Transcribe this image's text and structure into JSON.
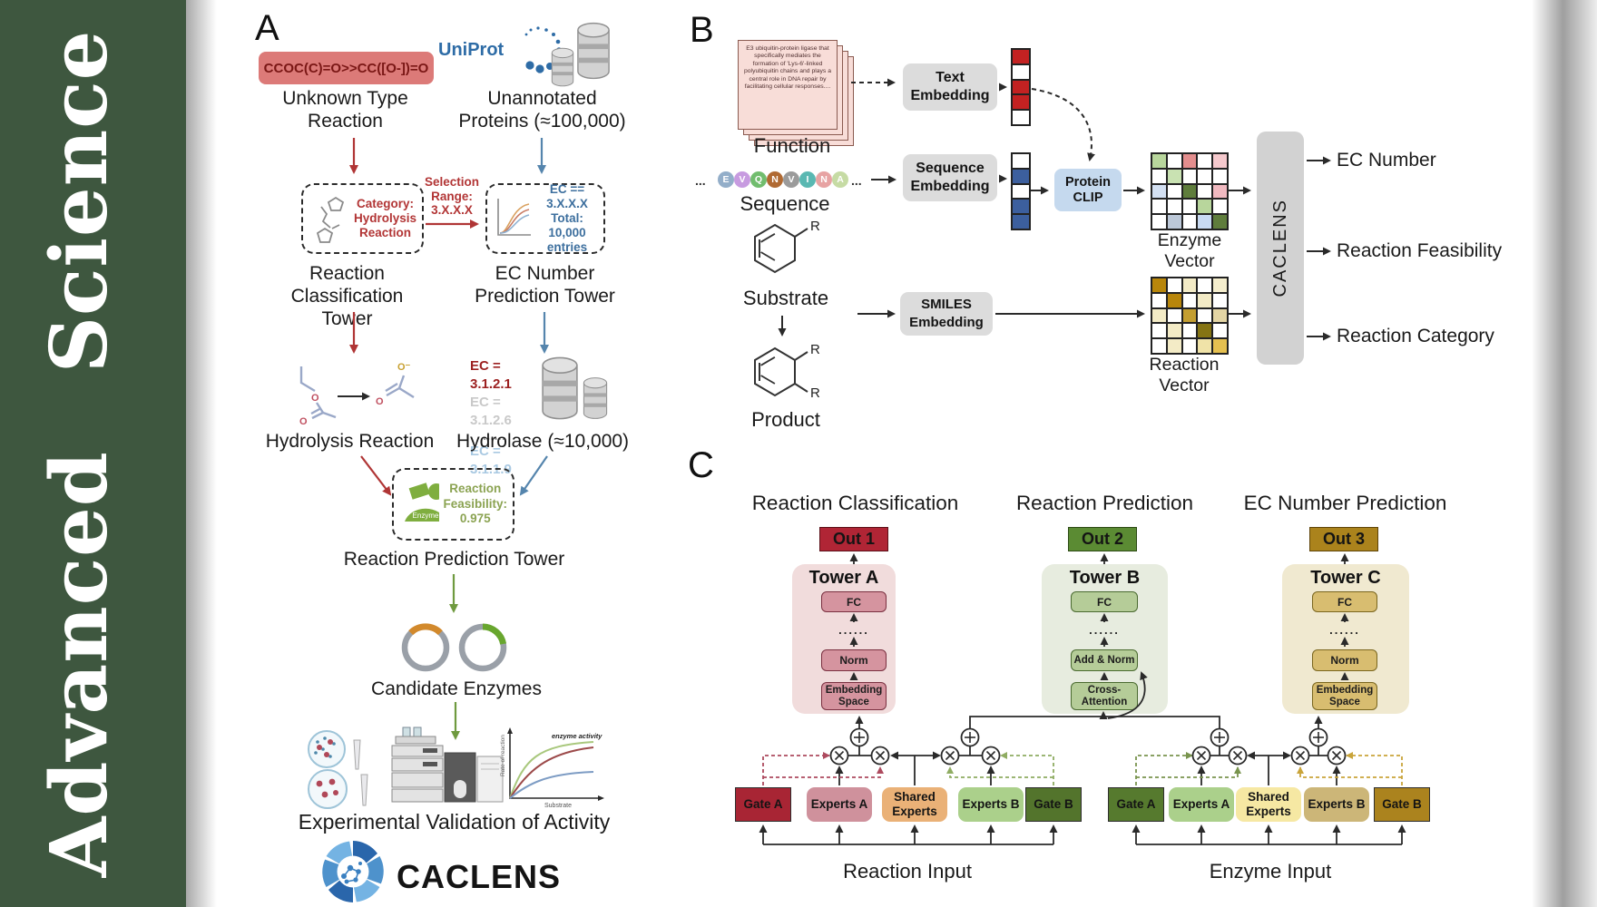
{
  "journal": {
    "title": "Advanced  Science"
  },
  "colors": {
    "sidebar_green": "#3e573f",
    "logo_blue": "#2e6ca6",
    "red_accent": "#b03535",
    "blue_accent": "#5585ad",
    "green_accent": "#6f9a3f"
  },
  "a": {
    "panel_label": "A",
    "smiles": "CCOC(C)=O>>CC([O-])=O",
    "unknown_type": "Unknown Type\nReaction",
    "uniprot_logo": "UniProt",
    "unannotated": "Unannotated\nProteins (≈100,000)",
    "category_box": "Category:\nHydrolysis\nReaction",
    "selection": "Selection\nRange:\n3.X.X.X",
    "ec_range_box": "EC == 3.X.X.X\nTotal: 10,000\nentries",
    "rc_tower": "Reaction\nClassification Tower",
    "ec_tower": "EC Number\nPrediction Tower",
    "ec_items": [
      "EC = 3.1.2.1",
      "EC = 3.1.2.6",
      "......",
      "EC = 3.1.1.9"
    ],
    "hydrolysis": "Hydrolysis Reaction",
    "hydrolase": "Hydrolase (≈10,000)",
    "o": "O",
    "o_minus": "O⁻",
    "enzyme_badge": "Enzyme",
    "feasibility": "Reaction\nFeasibility:\n0.975",
    "rp_tower": "Reaction Prediction Tower",
    "candidates": "Candidate Enzymes",
    "validation": "Experimental Validation of Activity",
    "graph": {
      "ylabel": "Rate of reaction",
      "xlabel": "Substrate",
      "note": "enzyme activity"
    },
    "logo_text": "CACLENS"
  },
  "b": {
    "panel_label": "B",
    "card_text": "E3 ubiquitin-protein ligase that specifically mediates the formation of 'Lys-6'-linked polyubiquitin chains and plays a central role in DNA repair by facilitating cellular responses....",
    "function": "Function",
    "dots": "...",
    "residues": [
      "E",
      "V",
      "Q",
      "N",
      "V",
      "I",
      "N",
      "A"
    ],
    "residue_colors": [
      "#93aec9",
      "#c79be0",
      "#71bd6e",
      "#b06a33",
      "#9b9b9b",
      "#5ab8b2",
      "#e7a3a3",
      "#c6dba4"
    ],
    "sequence": "Sequence",
    "substrate": "Substrate",
    "product": "Product",
    "r": "R",
    "text_embedding": "Text\nEmbedding",
    "sequence_embedding": "Sequence\nEmbedding",
    "smiles_embedding": "SMILES\nEmbedding",
    "protein_clip": "Protein\nCLIP",
    "text_vector": [
      "#c32222",
      "#ffffff",
      "#c32222",
      "#c32222",
      "#ffffff"
    ],
    "seq_vector": [
      "#ffffff",
      "#3c5f9e",
      "#ffffff",
      "#3c5f9e",
      "#3c5f9e"
    ],
    "enzyme_grid": [
      "#b8d69c",
      "#ffffff",
      "#e38e8e",
      "#ffffff",
      "#f5c9cd",
      "#ffffff",
      "#c9e2b2",
      "#ffffff",
      "#ffffff",
      "#ffffff",
      "#d3e0f2",
      "#ffffff",
      "#5f7d3c",
      "#ffffff",
      "#f0b9c0",
      "#ffffff",
      "#ffffff",
      "#ffffff",
      "#b8d69c",
      "#ffffff",
      "#ffffff",
      "#bcc8d8",
      "#ffffff",
      "#c8daf2",
      "#5f7d3c"
    ],
    "reaction_grid": [
      "#b8860b",
      "#ffffff",
      "#f3ebc6",
      "#ffffff",
      "#f5eecd",
      "#ffffff",
      "#b8860b",
      "#ffffff",
      "#f3ebc6",
      "#ffffff",
      "#f3ebc6",
      "#ffffff",
      "#c39e31",
      "#ffffff",
      "#e3d5a4",
      "#ffffff",
      "#f3ebc6",
      "#ffffff",
      "#857413",
      "#ffffff",
      "#ffffff",
      "#f3ebc6",
      "#ffffff",
      "#f0e3a8",
      "#e5c050"
    ],
    "enzyme_vector": "Enzyme Vector",
    "reaction_vector": "Reaction Vector",
    "caclens": "CACLENS",
    "outputs": [
      "EC Number",
      "Reaction Feasibility",
      "Reaction Category"
    ]
  },
  "c": {
    "panel_label": "C",
    "headers": [
      "Reaction Classification",
      "Reaction Prediction",
      "EC Number Prediction"
    ],
    "outs": [
      "Out 1",
      "Out 2",
      "Out 3"
    ],
    "towers": [
      {
        "title": "Tower A",
        "fc": "FC",
        "dots": "......",
        "norm": "Norm",
        "bottom": "Embedding\nSpace"
      },
      {
        "title": "Tower B",
        "fc": "FC",
        "dots": "......",
        "norm": "Add & Norm",
        "bottom": "Cross-\nAttention"
      },
      {
        "title": "Tower C",
        "fc": "FC",
        "dots": "......",
        "norm": "Norm",
        "bottom": "Embedding\nSpace"
      }
    ],
    "groups": [
      {
        "gate_a": "Gate A",
        "experts_a": "Experts A",
        "shared": "Shared\nExperts",
        "experts_b": "Experts B",
        "gate_b": "Gate B",
        "input": "Reaction Input"
      },
      {
        "gate_a": "Gate A",
        "experts_a": "Experts A",
        "shared": "Shared\nExperts",
        "experts_b": "Experts B",
        "gate_b": "Gate B",
        "input": "Enzyme Input"
      }
    ]
  }
}
